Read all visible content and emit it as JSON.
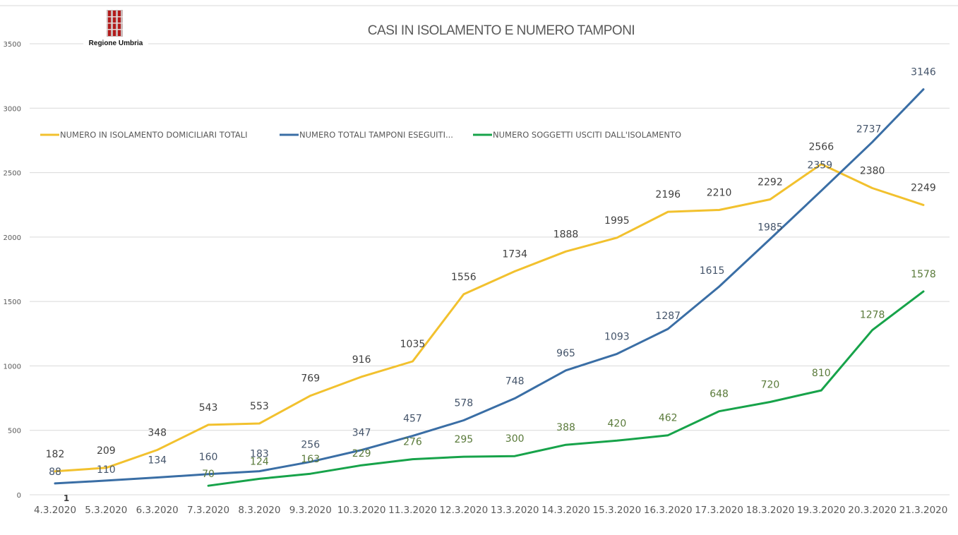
{
  "chart_data": {
    "type": "line",
    "title": "CASI IN ISOLAMENTO E NUMERO TAMPONI",
    "xlabel": "",
    "ylabel": "",
    "ylim": [
      0,
      3500
    ],
    "yticks": [
      0,
      500,
      1000,
      1500,
      2000,
      2500,
      3000,
      3500
    ],
    "grid": true,
    "legend_position": "top-left",
    "categories": [
      "4.3.2020",
      "5.3.2020",
      "6.3.2020",
      "7.3.2020",
      "8.3.2020",
      "9.3.2020",
      "10.3.2020",
      "11.3.2020",
      "12.3.2020",
      "13.3.2020",
      "14.3.2020",
      "15.3.2020",
      "16.3.2020",
      "17.3.2020",
      "18.3.2020",
      "19.3.2020",
      "20.3.2020",
      "21.3.2020"
    ],
    "series": [
      {
        "name": "NUMERO IN ISOLAMENTO DOMICILIARI TOTALI",
        "color": "#F2C12E",
        "label_color": "#404040",
        "values": [
          182,
          209,
          348,
          543,
          553,
          769,
          916,
          1035,
          1556,
          1734,
          1888,
          1995,
          2196,
          2210,
          2292,
          2566,
          2380,
          2249
        ]
      },
      {
        "name": "NUMERO TOTALI TAMPONI ESEGUITI...",
        "color": "#3A6EA5",
        "label_color": "#44546A",
        "values": [
          88,
          110,
          134,
          160,
          183,
          256,
          347,
          457,
          578,
          748,
          965,
          1093,
          1287,
          1615,
          1985,
          2359,
          2737,
          3146
        ]
      },
      {
        "name": "NUMERO SOGGETTI USCITI DALL'ISOLAMENTO",
        "color": "#17A34A",
        "label_color": "#5A7A3A",
        "values": [
          null,
          null,
          null,
          70,
          124,
          163,
          229,
          276,
          295,
          300,
          388,
          420,
          462,
          648,
          720,
          810,
          1278,
          1578
        ]
      }
    ],
    "annotations": [
      {
        "text": "1",
        "category": "4.3.2020",
        "value": 0
      }
    ]
  },
  "logo": {
    "text": "Regione Umbria"
  }
}
